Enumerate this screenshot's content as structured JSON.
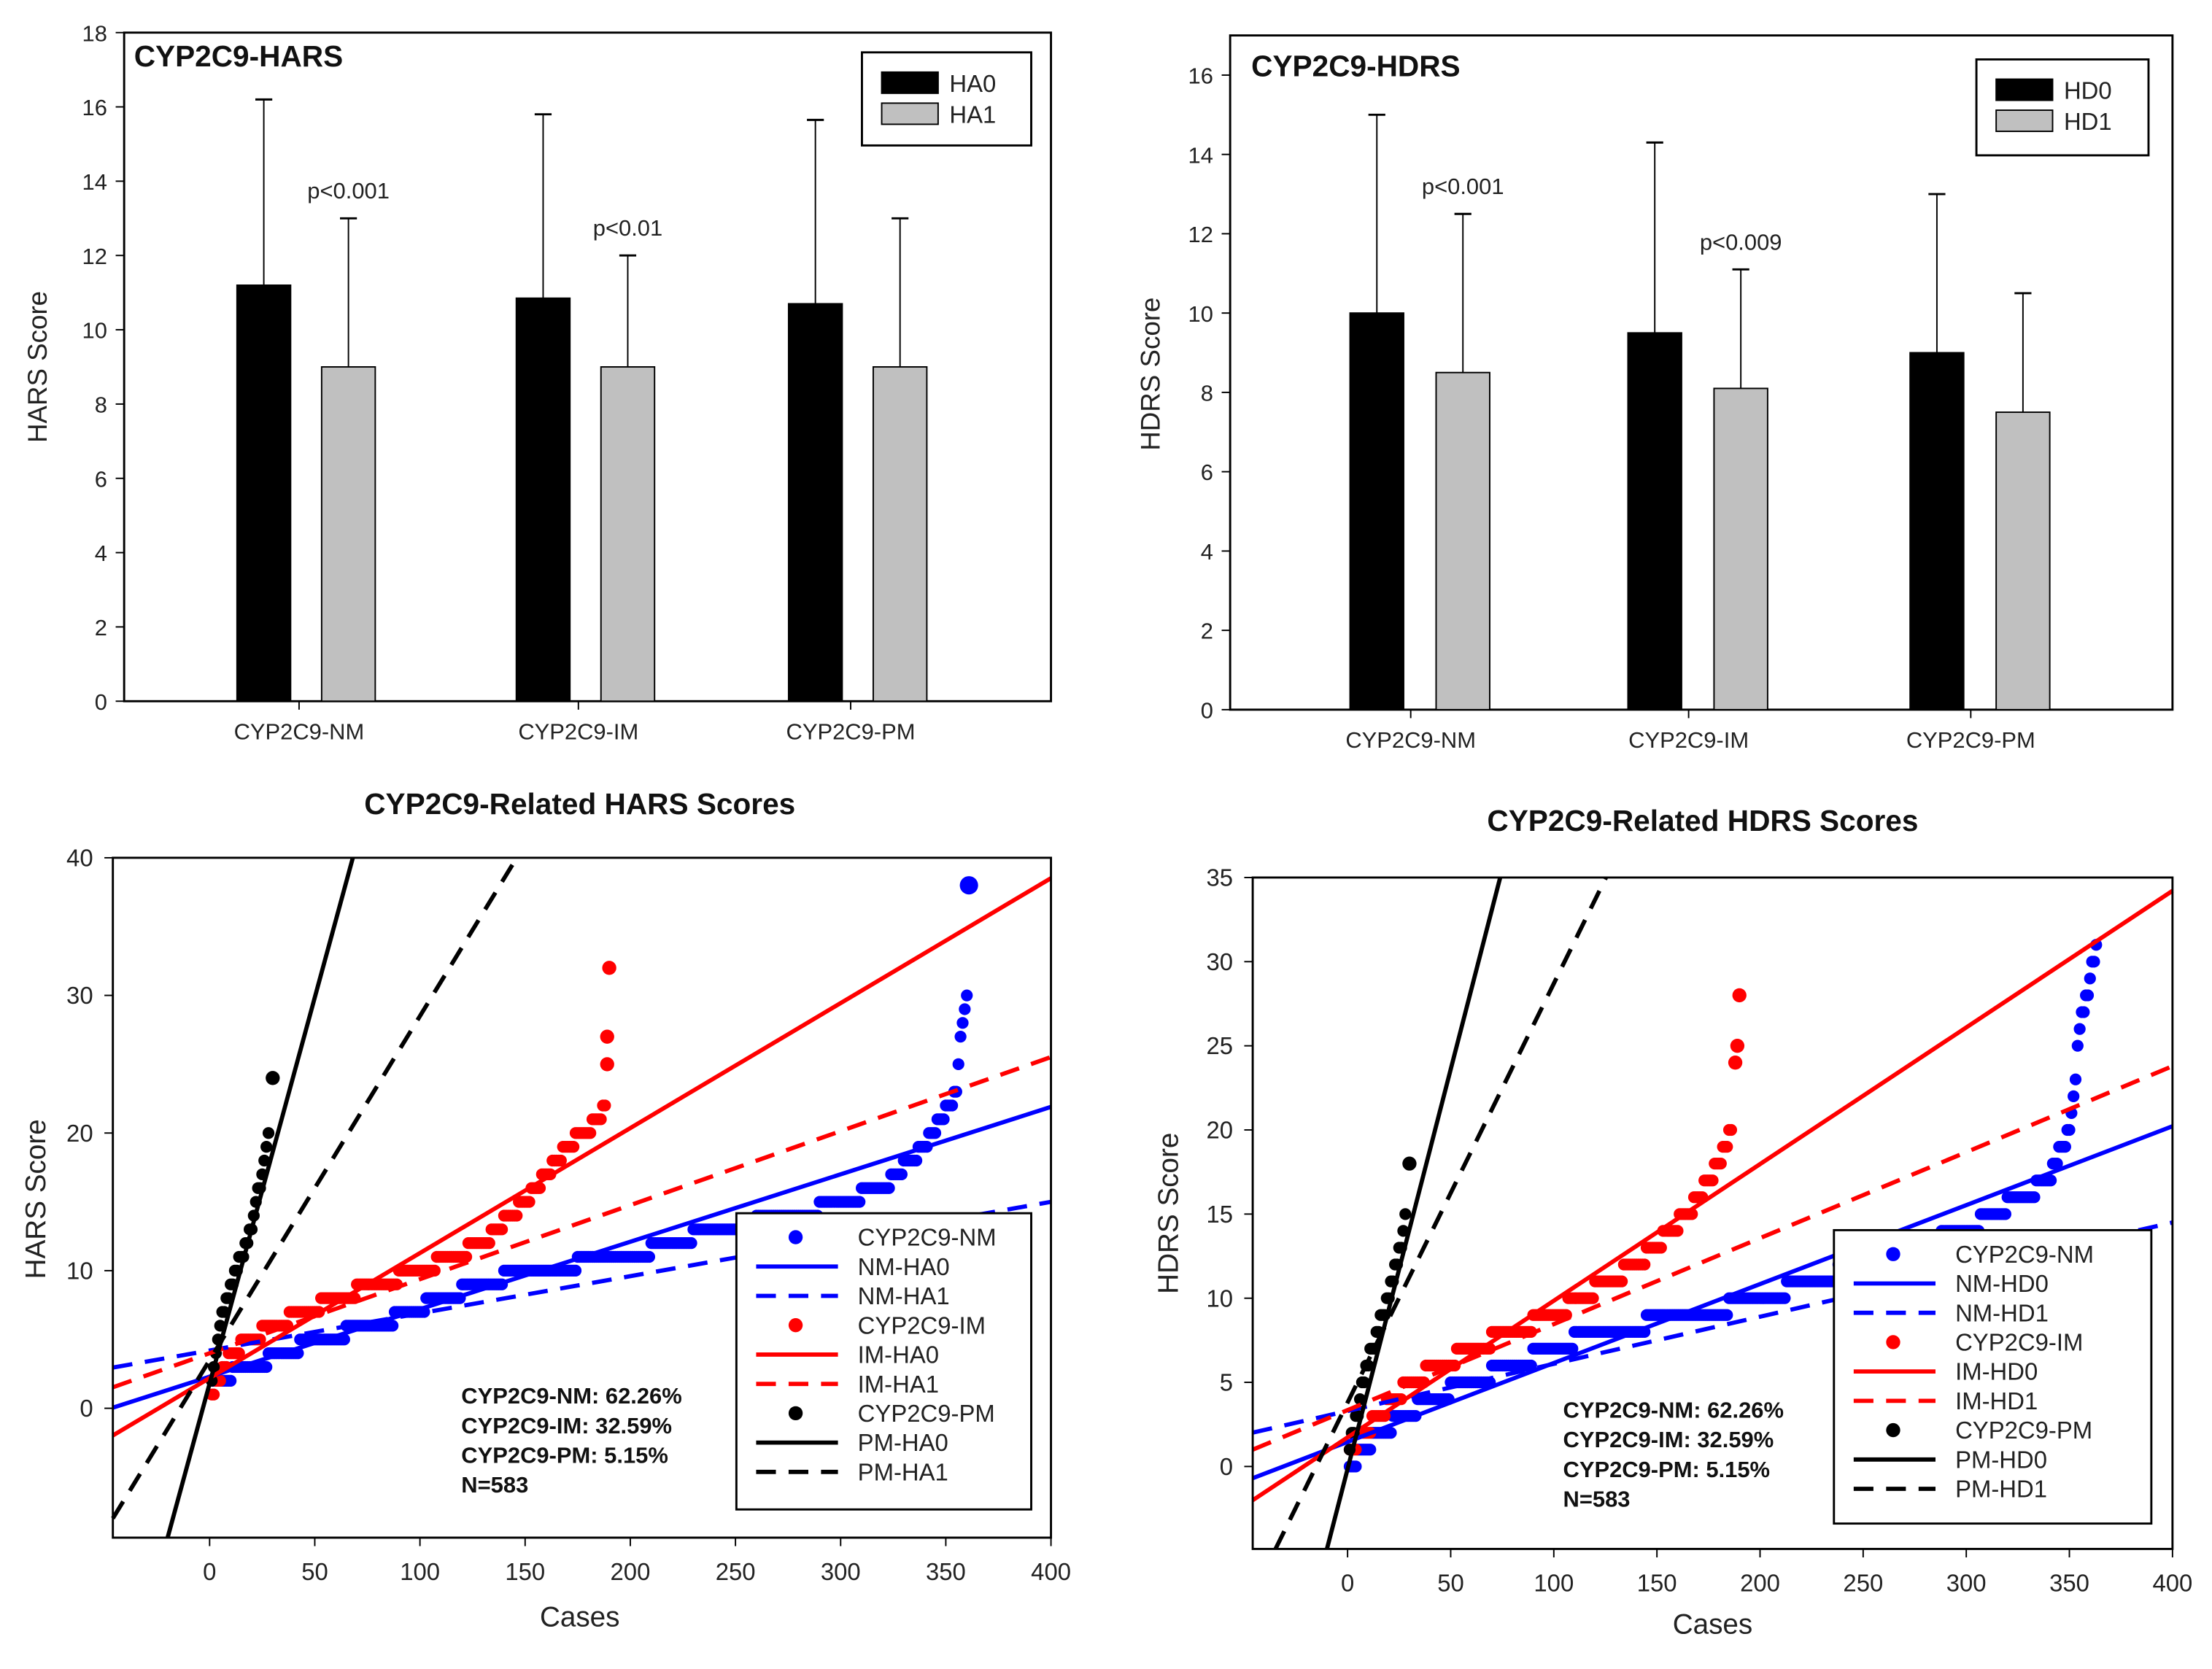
{
  "chart_data": [
    {
      "type": "bar",
      "title": "CYP2C9-HARS",
      "xlabel": "",
      "ylabel": "HARS Score",
      "ylim": [
        0,
        18
      ],
      "yticks": [
        0,
        2,
        4,
        6,
        8,
        10,
        12,
        14,
        16,
        18
      ],
      "categories": [
        "CYP2C9-NM",
        "CYP2C9-IM",
        "CYP2C9-PM"
      ],
      "series": [
        {
          "name": "HA0",
          "color": "#000000",
          "values": [
            11.2,
            10.85,
            10.7
          ],
          "error_upper": [
            16.2,
            15.8,
            15.65
          ]
        },
        {
          "name": "HA1",
          "color": "#c0c0c0",
          "values": [
            9.0,
            9.0,
            9.0
          ],
          "error_upper": [
            13.0,
            12.0,
            13.0
          ]
        }
      ],
      "annotations": [
        {
          "category": 0,
          "text": "p<0.001"
        },
        {
          "category": 1,
          "text": "p<0.01"
        }
      ],
      "legend": "top-right"
    },
    {
      "type": "bar",
      "title": "CYP2C9-HDRS",
      "xlabel": "",
      "ylabel": "HDRS Score",
      "ylim": [
        0,
        17
      ],
      "yticks": [
        0,
        2,
        4,
        6,
        8,
        10,
        12,
        14,
        16
      ],
      "categories": [
        "CYP2C9-NM",
        "CYP2C9-IM",
        "CYP2C9-PM"
      ],
      "series": [
        {
          "name": "HD0",
          "color": "#000000",
          "values": [
            10.0,
            9.5,
            9.0
          ],
          "error_upper": [
            15.0,
            14.3,
            13.0
          ]
        },
        {
          "name": "HD1",
          "color": "#c0c0c0",
          "values": [
            8.5,
            8.1,
            7.5
          ],
          "error_upper": [
            12.5,
            11.1,
            10.5
          ]
        }
      ],
      "annotations": [
        {
          "category": 0,
          "text": "p<0.001"
        },
        {
          "category": 1,
          "text": "p<0.009"
        }
      ],
      "legend": "top-right"
    },
    {
      "type": "scatter",
      "title": "CYP2C9-Related HARS Scores",
      "xlabel": "Cases",
      "ylabel": "HARS Score",
      "xlim": [
        -46,
        400
      ],
      "ylim": [
        -9.4,
        40
      ],
      "xticks": [
        0,
        50,
        100,
        150,
        200,
        250,
        300,
        350,
        400
      ],
      "yticks": [
        0,
        10,
        20,
        30,
        40
      ],
      "points": [
        {
          "name": "CYP2C9-NM",
          "color": "#0000ff",
          "n": 363,
          "anchors": [
            [
              1,
              2
            ],
            [
              20,
              3
            ],
            [
              50,
              5
            ],
            [
              80,
              6
            ],
            [
              110,
              8
            ],
            [
              150,
              10
            ],
            [
              200,
              11
            ],
            [
              240,
              13
            ],
            [
              280,
              14
            ],
            [
              320,
              16
            ],
            [
              340,
              19
            ],
            [
              355,
              23
            ],
            [
              357,
              27
            ],
            [
              360,
              30
            ]
          ],
          "outliers": [
            [
              361,
              38
            ]
          ]
        },
        {
          "name": "CYP2C9-IM",
          "color": "#ff0000",
          "n": 190,
          "anchors": [
            [
              1,
              1
            ],
            [
              10,
              4
            ],
            [
              30,
              6
            ],
            [
              60,
              8
            ],
            [
              100,
              10
            ],
            [
              130,
              12
            ],
            [
              150,
              15
            ],
            [
              170,
              19
            ],
            [
              186,
              21
            ],
            [
              188,
              22
            ]
          ],
          "outliers": [
            [
              189,
              25
            ],
            [
              189,
              27
            ],
            [
              190,
              32
            ]
          ]
        },
        {
          "name": "CYP2C9-PM",
          "color": "#000000",
          "n": 30,
          "anchors": [
            [
              1,
              2
            ],
            [
              5,
              6
            ],
            [
              10,
              9
            ],
            [
              18,
              12
            ],
            [
              25,
              17
            ],
            [
              28,
              20
            ]
          ],
          "outliers": [
            [
              30,
              24
            ]
          ]
        }
      ],
      "fit_lines": [
        {
          "name": "NM-HA0",
          "color": "#0000ff",
          "dashed": false,
          "slope": 0.049,
          "intercept": 2.3
        },
        {
          "name": "NM-HA1",
          "color": "#0000ff",
          "dashed": true,
          "slope": 0.027,
          "intercept": 4.2
        },
        {
          "name": "IM-HA0",
          "color": "#ff0000",
          "dashed": false,
          "slope": 0.0908,
          "intercept": 2.2
        },
        {
          "name": "IM-HA1",
          "color": "#ff0000",
          "dashed": true,
          "slope": 0.0538,
          "intercept": 4.0
        },
        {
          "name": "PM-HA0",
          "color": "#000000",
          "dashed": false,
          "slope": 0.561,
          "intercept": 1.8
        },
        {
          "name": "PM-HA1",
          "color": "#000000",
          "dashed": true,
          "slope": 0.25,
          "intercept": 3.5
        }
      ],
      "legend_entries": [
        {
          "label": "CYP2C9-NM",
          "kind": "dot",
          "color": "#0000ff"
        },
        {
          "label": "NM-HA0",
          "kind": "solid",
          "color": "#0000ff"
        },
        {
          "label": "NM-HA1",
          "kind": "dash",
          "color": "#0000ff"
        },
        {
          "label": "CYP2C9-IM",
          "kind": "dot",
          "color": "#ff0000"
        },
        {
          "label": "IM-HA0",
          "kind": "solid",
          "color": "#ff0000"
        },
        {
          "label": "IM-HA1",
          "kind": "dash",
          "color": "#ff0000"
        },
        {
          "label": "CYP2C9-PM",
          "kind": "dot",
          "color": "#000000"
        },
        {
          "label": "PM-HA0",
          "kind": "solid",
          "color": "#000000"
        },
        {
          "label": "PM-HA1",
          "kind": "dash",
          "color": "#000000"
        }
      ],
      "annotation_lines": [
        "CYP2C9-NM: 62.26%",
        "CYP2C9-IM: 32.59%",
        "CYP2C9-PM: 5.15%",
        "N=583"
      ],
      "legend": "bottom-right"
    },
    {
      "type": "scatter",
      "title": "CYP2C9-Related HDRS Scores",
      "xlabel": "Cases",
      "ylabel": "HDRS Score",
      "xlim": [
        -46,
        400
      ],
      "ylim": [
        -4.9,
        35
      ],
      "xticks": [
        0,
        50,
        100,
        150,
        200,
        250,
        300,
        350,
        400
      ],
      "yticks": [
        0,
        5,
        10,
        15,
        20,
        25,
        30,
        35
      ],
      "points": [
        {
          "name": "CYP2C9-NM",
          "color": "#0000ff",
          "n": 363,
          "anchors": [
            [
              1,
              0
            ],
            [
              15,
              2
            ],
            [
              40,
              4
            ],
            [
              80,
              6
            ],
            [
              120,
              8
            ],
            [
              170,
              9
            ],
            [
              200,
              10
            ],
            [
              250,
              12
            ],
            [
              300,
              14
            ],
            [
              340,
              17
            ],
            [
              350,
              20
            ],
            [
              353,
              23
            ],
            [
              355,
              26
            ],
            [
              360,
              29
            ],
            [
              363,
              31
            ]
          ],
          "outliers": []
        },
        {
          "name": "CYP2C9-IM",
          "color": "#ff0000",
          "n": 190,
          "anchors": [
            [
              1,
              1
            ],
            [
              15,
              3
            ],
            [
              30,
              5
            ],
            [
              60,
              7
            ],
            [
              100,
              9
            ],
            [
              140,
              12
            ],
            [
              165,
              15
            ],
            [
              180,
              18
            ],
            [
              186,
              20
            ]
          ],
          "outliers": [
            [
              188,
              24
            ],
            [
              189,
              25
            ],
            [
              190,
              28
            ]
          ]
        },
        {
          "name": "CYP2C9-PM",
          "color": "#000000",
          "n": 30,
          "anchors": [
            [
              1,
              1
            ],
            [
              6,
              4
            ],
            [
              12,
              7
            ],
            [
              20,
              10
            ],
            [
              26,
              13
            ],
            [
              28,
              15
            ]
          ],
          "outliers": [
            [
              30,
              18
            ]
          ]
        }
      ],
      "fit_lines": [
        {
          "name": "NM-HD0",
          "color": "#0000ff",
          "dashed": false,
          "slope": 0.0469,
          "intercept": 1.46
        },
        {
          "name": "NM-HD1",
          "color": "#0000ff",
          "dashed": true,
          "slope": 0.028,
          "intercept": 3.3
        },
        {
          "name": "IM-HD0",
          "color": "#ff0000",
          "dashed": false,
          "slope": 0.0812,
          "intercept": 1.73
        },
        {
          "name": "IM-HD1",
          "color": "#ff0000",
          "dashed": true,
          "slope": 0.0511,
          "intercept": 3.35
        },
        {
          "name": "PM-HD0",
          "color": "#000000",
          "dashed": false,
          "slope": 0.475,
          "intercept": -0.15
        },
        {
          "name": "PM-HD1",
          "color": "#000000",
          "dashed": true,
          "slope": 0.249,
          "intercept": 3.8
        }
      ],
      "legend_entries": [
        {
          "label": "CYP2C9-NM",
          "kind": "dot",
          "color": "#0000ff"
        },
        {
          "label": "NM-HD0",
          "kind": "solid",
          "color": "#0000ff"
        },
        {
          "label": "NM-HD1",
          "kind": "dash",
          "color": "#0000ff"
        },
        {
          "label": "CYP2C9-IM",
          "kind": "dot",
          "color": "#ff0000"
        },
        {
          "label": "IM-HD0",
          "kind": "solid",
          "color": "#ff0000"
        },
        {
          "label": "IM-HD1",
          "kind": "dash",
          "color": "#ff0000"
        },
        {
          "label": "CYP2C9-PM",
          "kind": "dot",
          "color": "#000000"
        },
        {
          "label": "PM-HD0",
          "kind": "solid",
          "color": "#000000"
        },
        {
          "label": "PM-HD1",
          "kind": "dash",
          "color": "#000000"
        }
      ],
      "annotation_lines": [
        "CYP2C9-NM: 62.26%",
        "CYP2C9-IM: 32.59%",
        "CYP2C9-PM: 5.15%",
        "N=583"
      ],
      "legend": "bottom-right"
    }
  ]
}
